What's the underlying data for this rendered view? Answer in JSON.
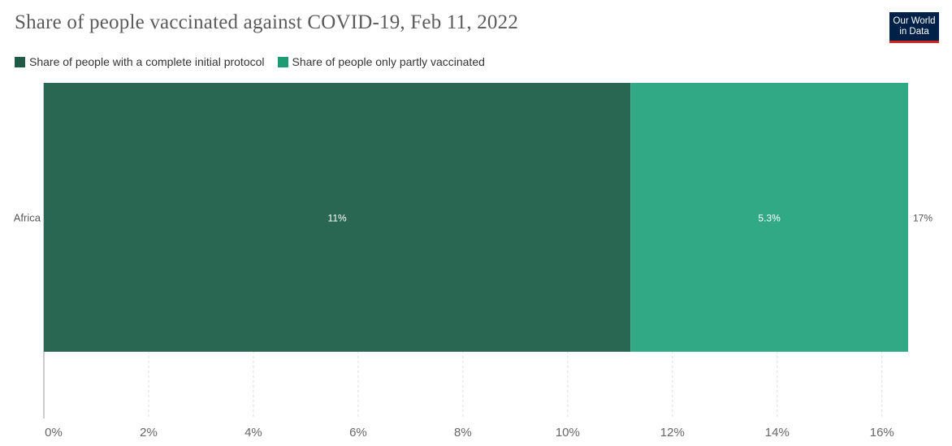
{
  "header": {
    "title": "Share of people vaccinated against COVID-19, Feb 11, 2022",
    "logo_line1": "Our World",
    "logo_line2": "in Data"
  },
  "legend": [
    {
      "label": "Share of people with a complete initial protocol",
      "color": "#2a6753"
    },
    {
      "label": "Share of people only partly vaccinated",
      "color": "#31a985"
    }
  ],
  "chart_data": {
    "type": "bar",
    "orientation": "horizontal",
    "stacked": true,
    "categories": [
      "Africa"
    ],
    "series": [
      {
        "name": "Share of people with a complete initial protocol",
        "values": [
          11.2
        ],
        "label": "11%",
        "color": "#2a6753"
      },
      {
        "name": "Share of people only partly vaccinated",
        "values": [
          5.3
        ],
        "label": "5.3%",
        "color": "#31a985"
      }
    ],
    "totals": [
      "17%"
    ],
    "xlim": [
      0,
      16.5
    ],
    "xticks": [
      0,
      2,
      4,
      6,
      8,
      10,
      12,
      14,
      16
    ],
    "xtick_labels": [
      "0%",
      "2%",
      "4%",
      "6%",
      "8%",
      "10%",
      "12%",
      "14%",
      "16%"
    ],
    "grid": true,
    "legend_position": "top-left"
  }
}
